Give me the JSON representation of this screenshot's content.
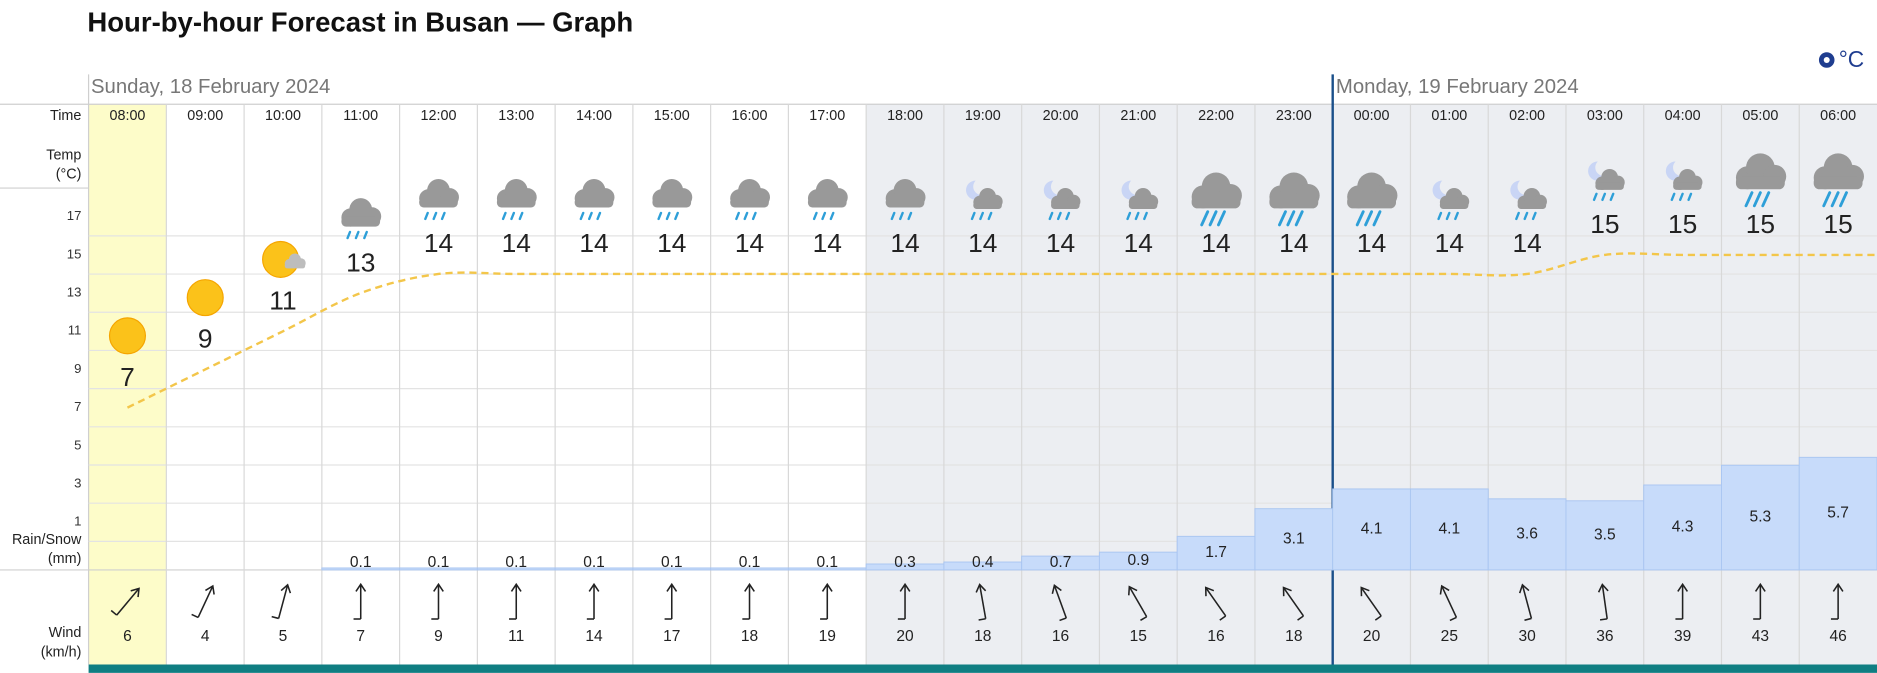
{
  "chart_data": {
    "type": "forecast",
    "title": "Hour-by-hour Forecast in Busan — Graph",
    "unit_label": "°C",
    "days": [
      "Sunday, 18 February 2024",
      "Monday, 19 February 2024"
    ],
    "time_label": "Time",
    "temp_label": [
      "Temp",
      "(°C)"
    ],
    "rain_label": [
      "Rain/Snow",
      "(mm)"
    ],
    "wind_label": [
      "Wind",
      "(km/h)"
    ],
    "categories": [
      "08:00",
      "09:00",
      "10:00",
      "11:00",
      "12:00",
      "13:00",
      "14:00",
      "15:00",
      "16:00",
      "17:00",
      "18:00",
      "19:00",
      "20:00",
      "21:00",
      "22:00",
      "23:00",
      "00:00",
      "01:00",
      "02:00",
      "03:00",
      "04:00",
      "05:00",
      "06:00"
    ],
    "temperature": [
      7,
      9,
      11,
      13,
      14,
      14,
      14,
      14,
      14,
      14,
      14,
      14,
      14,
      14,
      14,
      14,
      14,
      14,
      14,
      15,
      15,
      15,
      15
    ],
    "precipitation": [
      null,
      null,
      null,
      0.1,
      0.1,
      0.1,
      0.1,
      0.1,
      0.1,
      0.1,
      0.3,
      0.4,
      0.7,
      0.9,
      1.7,
      3.1,
      4.1,
      4.1,
      3.6,
      3.5,
      4.3,
      5.3,
      5.7
    ],
    "wind": [
      6,
      4,
      5,
      7,
      9,
      11,
      14,
      17,
      18,
      19,
      20,
      18,
      16,
      15,
      16,
      18,
      20,
      25,
      30,
      36,
      39,
      43,
      46
    ],
    "ylim": [
      -1.5,
      18.5
    ],
    "yticks": [
      17,
      15,
      13,
      11,
      9,
      7,
      5,
      3,
      1
    ],
    "y2lim": [
      0,
      6
    ],
    "grid": true,
    "line_color": "#f3c64a",
    "bar_color": "#c7dbfa"
  }
}
